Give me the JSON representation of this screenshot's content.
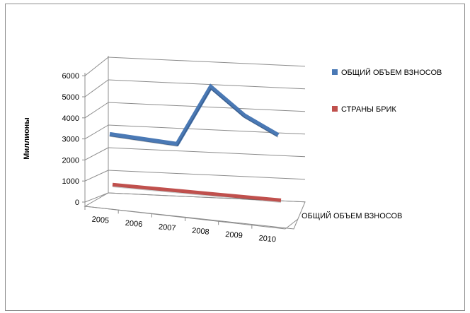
{
  "chart_data": {
    "type": "line",
    "title": "",
    "ylabel": "Миллионы",
    "xlabel": "",
    "depth_axis_label": "ОБЩИЙ ОБЪЕМ ВЗНОСОВ",
    "categories": [
      "2005",
      "2006",
      "2007",
      "2008",
      "2009",
      "2010"
    ],
    "ylim": [
      0,
      6000
    ],
    "yticks": [
      "0",
      "1000",
      "2000",
      "3000",
      "4000",
      "5000",
      "6000"
    ],
    "grid": true,
    "view": "3d",
    "legend_position": "right",
    "series": [
      {
        "name": "ОБЩИЙ ОБЪЕМ ВЗНОСОВ",
        "color": "#4a79b5",
        "values": [
          2600,
          2450,
          2300,
          4900,
          3700,
          2900
        ]
      },
      {
        "name": "СТРАНЫ БРИК",
        "color": "#c0504d",
        "values": [
          500,
          430,
          360,
          290,
          220,
          150
        ]
      }
    ]
  }
}
